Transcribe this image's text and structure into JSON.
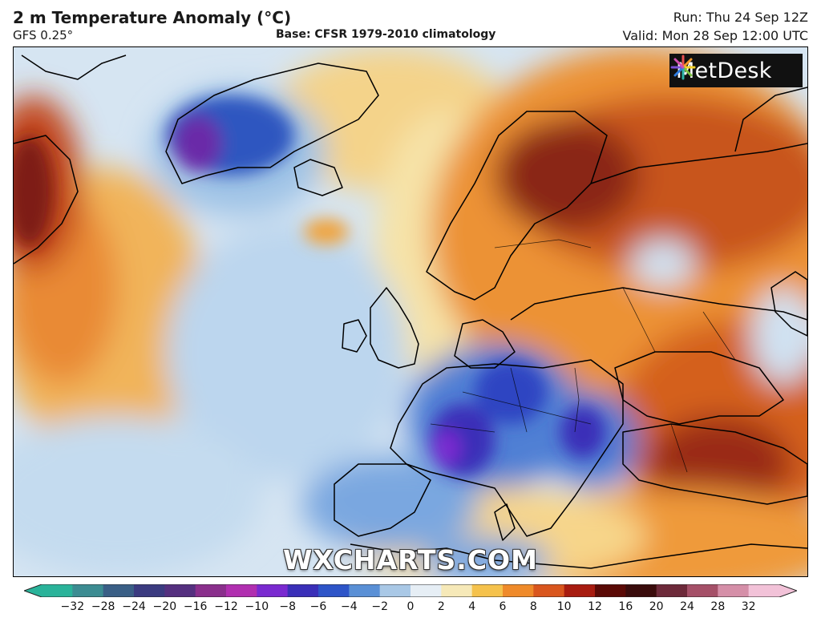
{
  "header": {
    "title": "2 m Temperature Anomaly (°C)",
    "model": "GFS 0.25°",
    "base": "Base: CFSR 1979-2010 climatology",
    "run": "Run: Thu 24 Sep 12Z",
    "valid": "Valid: Mon 28 Sep 12:00 UTC"
  },
  "logo": {
    "text": "MetDesk",
    "icon": "metdesk-burst-icon"
  },
  "watermark": "WXCHARTS.COM",
  "legend": {
    "ticks": [
      "−32",
      "−28",
      "−24",
      "−20",
      "−16",
      "−12",
      "−10",
      "−8",
      "−6",
      "−4",
      "−2",
      "0",
      "2",
      "4",
      "6",
      "8",
      "10",
      "12",
      "16",
      "20",
      "24",
      "28",
      "32"
    ],
    "colors": [
      "#2ab39a",
      "#3c8c92",
      "#3a5f86",
      "#3b3b80",
      "#55307f",
      "#8a2f8c",
      "#b12fb0",
      "#7a2ad0",
      "#3a2fb8",
      "#2e55c8",
      "#5a90d6",
      "#a9c8e6",
      "#e6eef5",
      "#f6e9b8",
      "#f5c24c",
      "#ef8a2a",
      "#d9561e",
      "#a81c10",
      "#5b0a06",
      "#3a0c0c",
      "#6d2a3a",
      "#a55068",
      "#d58fa8",
      "#f2c2d8"
    ]
  }
}
